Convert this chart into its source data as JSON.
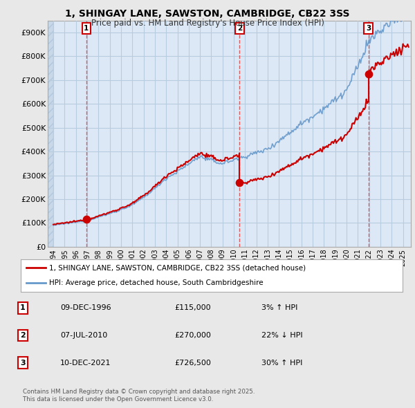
{
  "title": "1, SHINGAY LANE, SAWSTON, CAMBRIDGE, CB22 3SS",
  "subtitle": "Price paid vs. HM Land Registry's House Price Index (HPI)",
  "legend_line1": "1, SHINGAY LANE, SAWSTON, CAMBRIDGE, CB22 3SS (detached house)",
  "legend_line2": "HPI: Average price, detached house, South Cambridgeshire",
  "footer1": "Contains HM Land Registry data © Crown copyright and database right 2025.",
  "footer2": "This data is licensed under the Open Government Licence v3.0.",
  "sales": [
    {
      "label": "1",
      "date": "09-DEC-1996",
      "price": 115000,
      "year": 1996.92,
      "hpi_pct": "3%",
      "hpi_dir": "↑"
    },
    {
      "label": "2",
      "date": "07-JUL-2010",
      "price": 270000,
      "year": 2010.51,
      "hpi_pct": "22%",
      "hpi_dir": "↓"
    },
    {
      "label": "3",
      "date": "10-DEC-2021",
      "price": 726500,
      "year": 2021.94,
      "hpi_pct": "30%",
      "hpi_dir": "↑"
    }
  ],
  "ylim": [
    0,
    950000
  ],
  "yticks": [
    0,
    100000,
    200000,
    300000,
    400000,
    500000,
    600000,
    700000,
    800000,
    900000
  ],
  "xlim_start": 1993.5,
  "xlim_end": 2025.7,
  "background_color": "#e8e8e8",
  "plot_bg_color": "#dce8f5",
  "hatch_color": "#c8d8e8",
  "red_line_color": "#cc0000",
  "blue_line_color": "#6699cc",
  "grid_color": "#b8cce0",
  "sale_marker_color": "#cc0000",
  "sale_label_border": "#cc0000",
  "legend_bg": "#ffffff",
  "legend_border": "#aaaaaa"
}
